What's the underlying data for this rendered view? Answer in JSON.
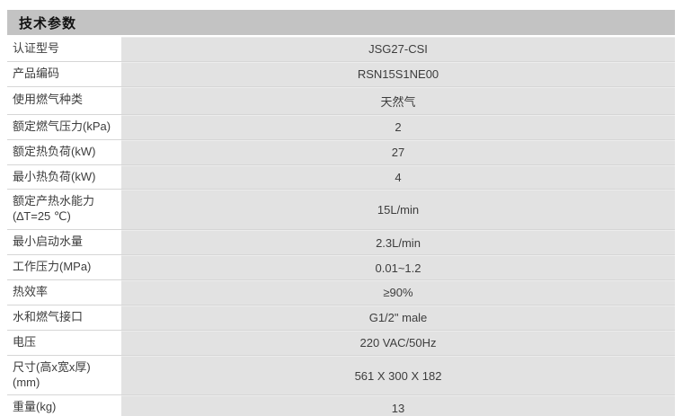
{
  "header": {
    "title": "技术参数",
    "bg": "#c3c3c3"
  },
  "table": {
    "rows": [
      {
        "label": "认证型号",
        "value": "JSG27-CSI"
      },
      {
        "label": "产品编码",
        "value": "RSN15S1NE00"
      },
      {
        "label": "使用燃气种类",
        "value": "天然气"
      },
      {
        "label": "额定燃气压力(kPa)",
        "value": "2"
      },
      {
        "label": "额定热负荷(kW)",
        "value": "27"
      },
      {
        "label": "最小热负荷(kW)",
        "value": "4"
      },
      {
        "label": "额定产热水能力",
        "label_line2": "(∆T=25 ℃)",
        "value": "15L/min"
      },
      {
        "label": "最小启动水量",
        "value": "2.3L/min"
      },
      {
        "label": "工作压力(MPa)",
        "value": "0.01~1.2"
      },
      {
        "label": "热效率",
        "value": "≥90%"
      },
      {
        "label": "水和燃气接口",
        "value": "G1/2\" male"
      },
      {
        "label": "电压",
        "value": "220 VAC/50Hz"
      },
      {
        "label": "尺寸(高x宽x厚) (mm)",
        "value": "561 X 300 X 182"
      },
      {
        "label": "重量(kg)",
        "value": "13"
      }
    ],
    "colors": {
      "value_cell_bg": "#e2e2e2",
      "row_border": "#d6d6d6",
      "text": "#3d3d3d"
    }
  }
}
